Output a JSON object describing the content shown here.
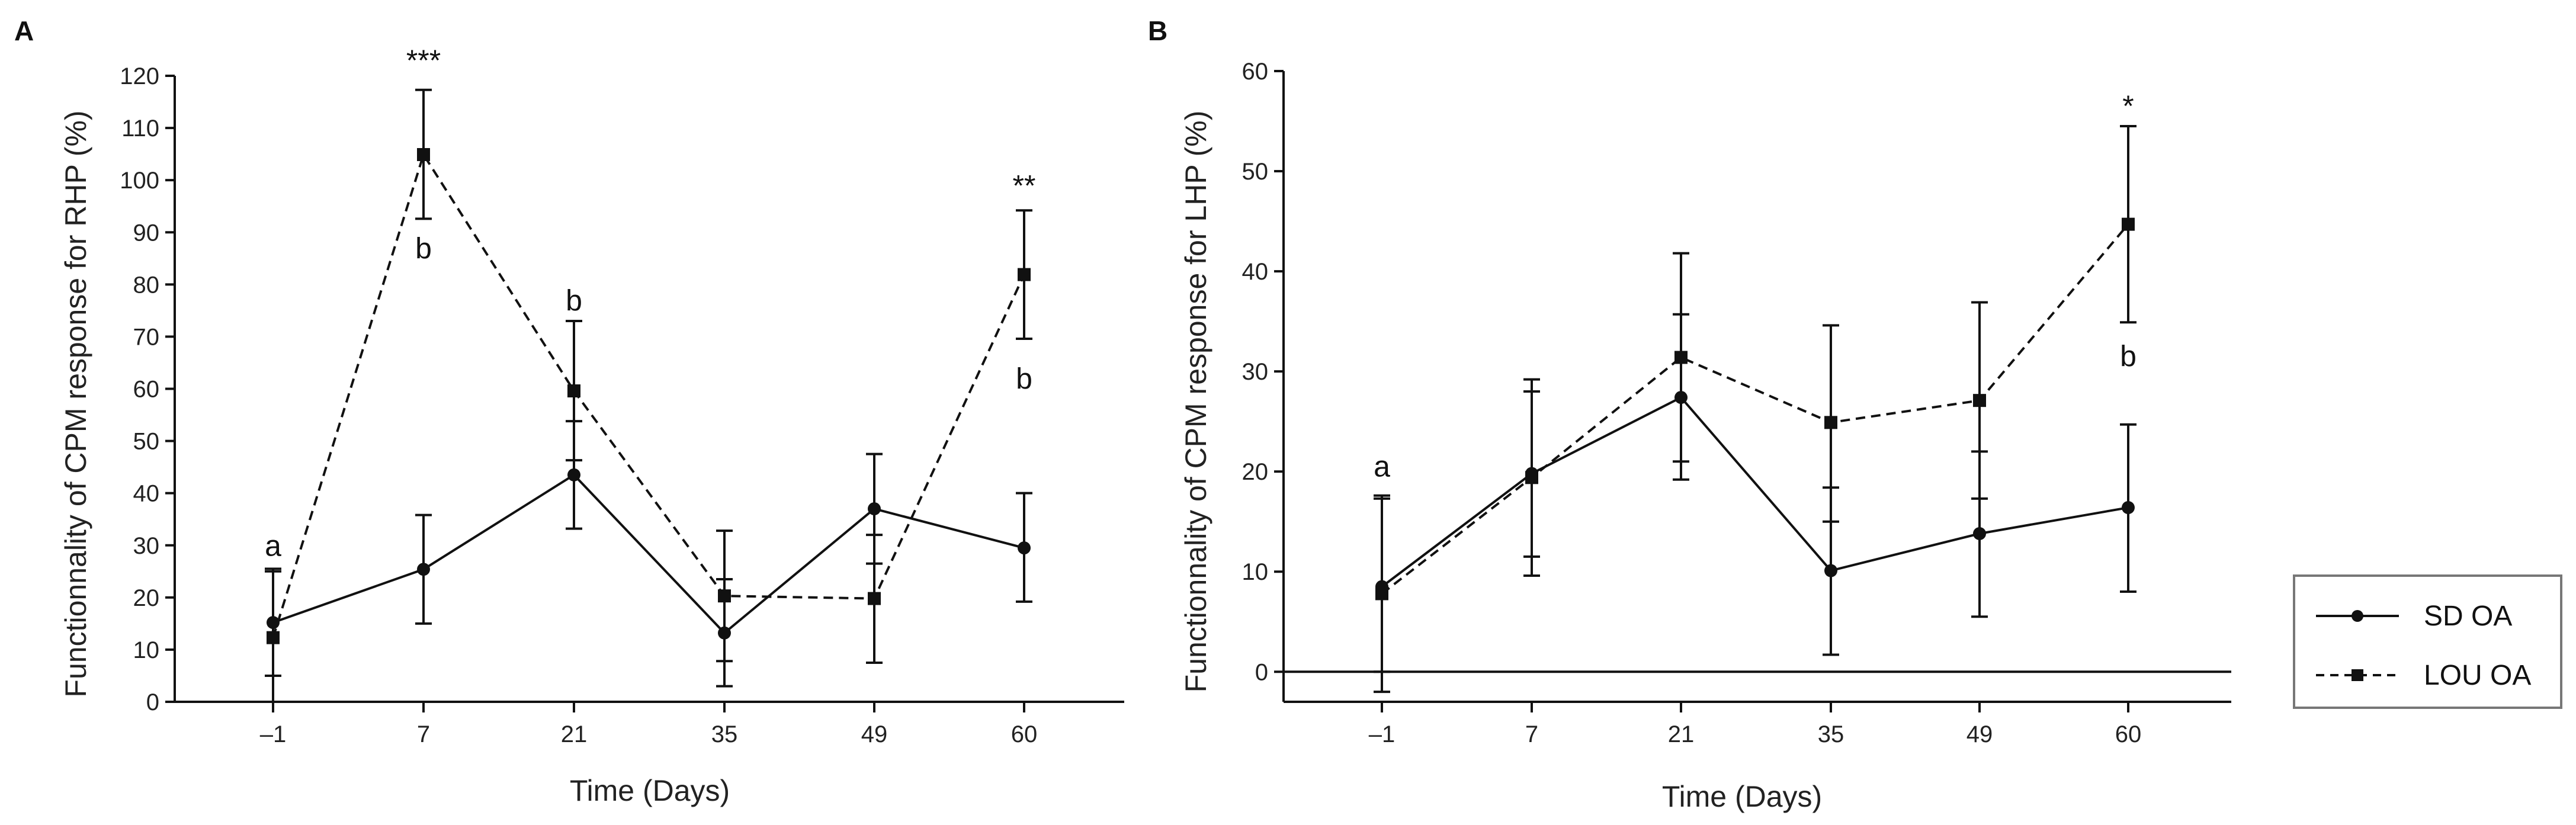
{
  "chart_data": [
    {
      "panel": "A",
      "type": "line",
      "categories": [
        "–1",
        "7",
        "21",
        "35",
        "49",
        "60"
      ],
      "xlabel": "Time (Days)",
      "ylabel": "Functionnality of CPM response for RHP (%)",
      "ylim": [
        0,
        120
      ],
      "yticks": [
        0,
        10,
        20,
        30,
        40,
        50,
        60,
        70,
        80,
        90,
        100,
        110,
        120
      ],
      "series": [
        {
          "name": "SD OA",
          "marker": "circle",
          "linestyle": "solid",
          "values": [
            15.2,
            25.4,
            43.5,
            13.2,
            37.0,
            29.5
          ],
          "err_upper": [
            25.5,
            35.8,
            53.8,
            23.5,
            47.5,
            40.0
          ],
          "err_lower": [
            5.0,
            15.0,
            33.2,
            3.0,
            26.5,
            19.2
          ]
        },
        {
          "name": "LOU OA",
          "marker": "square",
          "linestyle": "dashed",
          "values": [
            12.3,
            104.9,
            59.6,
            20.3,
            19.8,
            81.9
          ],
          "err_upper": [
            25.0,
            117.3,
            73.0,
            32.8,
            32.0,
            94.2
          ],
          "err_lower": [
            0.0,
            92.6,
            46.3,
            7.8,
            7.5,
            69.6
          ]
        }
      ],
      "annotations": [
        {
          "text": "***",
          "x_index": 1,
          "y": 121,
          "color": "#111111"
        },
        {
          "text": "b",
          "x_index": 1,
          "y": 85,
          "color": "#111111"
        },
        {
          "text": "b",
          "x_index": 2,
          "y": 75,
          "color": "#111111"
        },
        {
          "text": "**",
          "x_index": 5,
          "y": 97,
          "color": "#111111"
        },
        {
          "text": "b",
          "x_index": 5,
          "y": 60,
          "color": "#111111"
        },
        {
          "text": "a",
          "x_index": 0,
          "y": 28,
          "color": "#111111"
        }
      ]
    },
    {
      "panel": "B",
      "type": "line",
      "categories": [
        "–1",
        "7",
        "21",
        "35",
        "49",
        "60"
      ],
      "xlabel": "Time (Days)",
      "ylabel": "Functionnality of CPM response for LHP (%)",
      "ylim": [
        -3,
        60
      ],
      "yticks": [
        0,
        10,
        20,
        30,
        40,
        50,
        60
      ],
      "zero_line": true,
      "series": [
        {
          "name": "SD OA",
          "marker": "circle",
          "linestyle": "solid",
          "values": [
            8.5,
            19.8,
            27.4,
            10.1,
            13.8,
            16.4
          ],
          "err_upper": [
            17.3,
            28.0,
            35.7,
            18.4,
            22.0,
            24.7
          ],
          "err_lower": [
            0.0,
            11.5,
            19.2,
            1.7,
            5.5,
            8.0
          ]
        },
        {
          "name": "LOU OA",
          "marker": "square",
          "linestyle": "dashed",
          "values": [
            7.8,
            19.4,
            31.4,
            24.9,
            27.1,
            44.7
          ],
          "err_upper": [
            17.6,
            29.2,
            41.8,
            34.6,
            36.9,
            54.5
          ],
          "err_lower": [
            -2.0,
            9.6,
            21.0,
            15.0,
            17.3,
            34.9
          ]
        }
      ],
      "annotations": [
        {
          "text": "a",
          "x_index": 0,
          "y": 19.5,
          "color": "#111111"
        },
        {
          "text": "*",
          "x_index": 5,
          "y": 55.5,
          "color": "#111111"
        },
        {
          "text": "b",
          "x_index": 5,
          "y": 30.5,
          "color": "#111111"
        }
      ]
    }
  ],
  "legend": {
    "position": "right",
    "items": [
      {
        "name": "SD OA",
        "marker": "circle",
        "linestyle": "solid"
      },
      {
        "name": "LOU OA",
        "marker": "square",
        "linestyle": "dashed"
      }
    ]
  }
}
